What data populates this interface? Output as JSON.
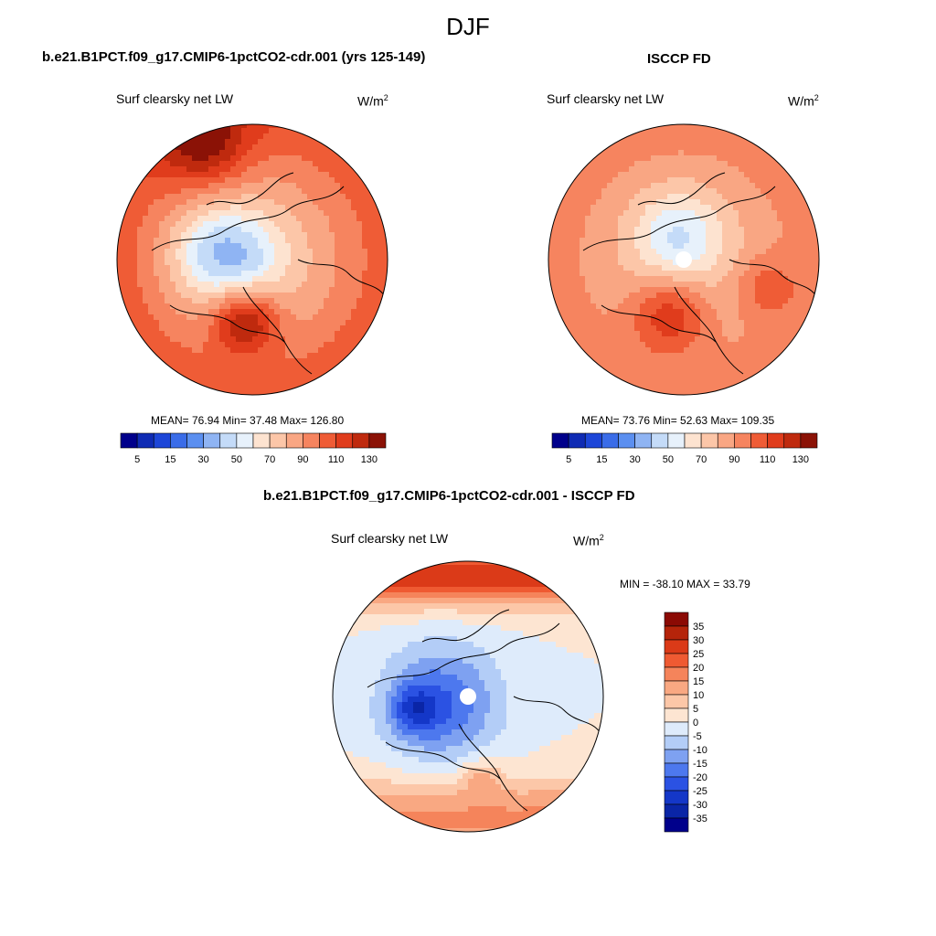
{
  "title": "DJF",
  "colors": {
    "abs_scale": [
      "#00008b",
      "#0f2bb4",
      "#1d46d8",
      "#3a6ce8",
      "#5b8ff0",
      "#8fb4f3",
      "#c4dbf8",
      "#e7f1fb",
      "#fde3d0",
      "#fcc6a8",
      "#f9a683",
      "#f6845f",
      "#ef5c36",
      "#e03c1c",
      "#bf2a0e",
      "#8b1206"
    ],
    "diff_scale": [
      "#00008b",
      "#0a25a6",
      "#1437c8",
      "#2b52e3",
      "#4d78ee",
      "#7ea1f1",
      "#b3cdf7",
      "#deebfb",
      "#fde5d2",
      "#fcc7a8",
      "#f9a882",
      "#f5845b",
      "#ef5a32",
      "#db3a18",
      "#b5240a",
      "#8b0a04"
    ],
    "coast": "#000000"
  },
  "panels": [
    {
      "id": "model",
      "title": "b.e21.B1PCT.f09_g17.CMIP6-1pctCO2-cdr.001 (yrs 125-149)",
      "variable": "Surf clearsky net LW",
      "units": "W/m",
      "units_sup": "2",
      "stats": "MEAN=  76.94  Min=  37.48  Max= 126.80"
    },
    {
      "id": "obs",
      "title": "ISCCP FD",
      "variable": "Surf clearsky net LW",
      "units": "W/m",
      "units_sup": "2",
      "stats": "MEAN=  73.76  Min=  52.63  Max= 109.35"
    },
    {
      "id": "diff",
      "title": "b.e21.B1PCT.f09_g17.CMIP6-1pctCO2-cdr.001 - ISCCP FD",
      "variable": "Surf clearsky net LW",
      "units": "W/m",
      "units_sup": "2",
      "stats": "MIN = -38.10 MAX =  33.79"
    }
  ],
  "chart_data": [
    {
      "type": "heatmap",
      "projection": "north polar stereographic",
      "title": "b.e21.B1PCT.f09_g17.CMIP6-1pctCO2-cdr.001 (yrs 125-149)",
      "variable": "Surf clearsky net LW",
      "units": "W/m2",
      "mean": 76.94,
      "min": 37.48,
      "max": 126.8,
      "levels": [
        5,
        10,
        15,
        20,
        30,
        40,
        50,
        60,
        70,
        80,
        90,
        100,
        110,
        120,
        130
      ],
      "colorbar_tick_labels": [
        "5",
        "15",
        "30",
        "50",
        "70",
        "90",
        "110",
        "130"
      ]
    },
    {
      "type": "heatmap",
      "projection": "north polar stereographic",
      "title": "ISCCP FD",
      "variable": "Surf clearsky net LW",
      "units": "W/m2",
      "mean": 73.76,
      "min": 52.63,
      "max": 109.35,
      "levels": [
        5,
        10,
        15,
        20,
        30,
        40,
        50,
        60,
        70,
        80,
        90,
        100,
        110,
        120,
        130
      ],
      "colorbar_tick_labels": [
        "5",
        "15",
        "30",
        "50",
        "70",
        "90",
        "110",
        "130"
      ]
    },
    {
      "type": "heatmap",
      "projection": "north polar stereographic",
      "title": "b.e21.B1PCT.f09_g17.CMIP6-1pctCO2-cdr.001 - ISCCP FD",
      "variable": "Surf clearsky net LW",
      "units": "W/m2",
      "min": -38.1,
      "max": 33.79,
      "levels": [
        -35,
        -30,
        -25,
        -20,
        -15,
        -10,
        -5,
        0,
        5,
        10,
        15,
        20,
        25,
        30,
        35
      ],
      "colorbar_tick_labels": [
        "35",
        "30",
        "25",
        "20",
        "15",
        "10",
        "5",
        "0",
        "-5",
        "-10",
        "-15",
        "-20",
        "-25",
        "-30",
        "-35"
      ]
    }
  ]
}
